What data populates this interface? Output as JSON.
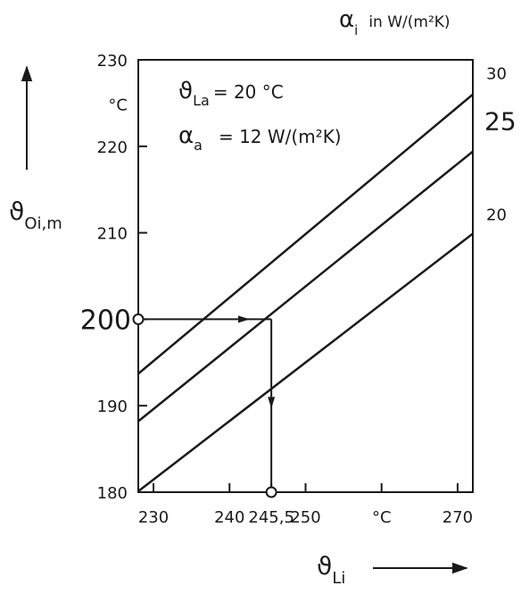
{
  "chart_data": {
    "type": "line",
    "xlabel": "ϑ",
    "xlabel_sub": "Li",
    "x_unit": "°C",
    "ylabel": "ϑ",
    "ylabel_sub": "Oi,m",
    "y_unit": "°C",
    "right_axis_title": "α",
    "right_axis_title_sub": "i",
    "right_axis_title_rest": "in W/(m²K)",
    "params": [
      {
        "sym": "ϑ",
        "sub": "La",
        "text": "= 20 °C"
      },
      {
        "sym": "α",
        "sub": "a",
        "text": "= 12 W/(m²K)"
      }
    ],
    "xlim": [
      228,
      272
    ],
    "ylim": [
      180,
      230
    ],
    "x_ticks": [
      230,
      240,
      245.5,
      250,
      270
    ],
    "x_tick_labels": [
      "230",
      "240",
      "245,5",
      "250",
      "270"
    ],
    "x_unit_tick_at": 260,
    "y_ticks": [
      180,
      190,
      200,
      210,
      220,
      230
    ],
    "y_tick_labels": [
      "180",
      "190",
      "200",
      "210",
      "220",
      "230"
    ],
    "y_unit_tick_at": 225,
    "series": [
      {
        "name": "30",
        "x": [
          228,
          272
        ],
        "y": [
          193.7,
          226.0
        ]
      },
      {
        "name": "25",
        "x": [
          228,
          272
        ],
        "y": [
          188.2,
          219.4
        ]
      },
      {
        "name": "20",
        "x": [
          228,
          272
        ],
        "y": [
          180.1,
          209.9
        ]
      }
    ],
    "example": {
      "y_start": 200,
      "x_hit": 245.5,
      "y_end": 180
    }
  }
}
